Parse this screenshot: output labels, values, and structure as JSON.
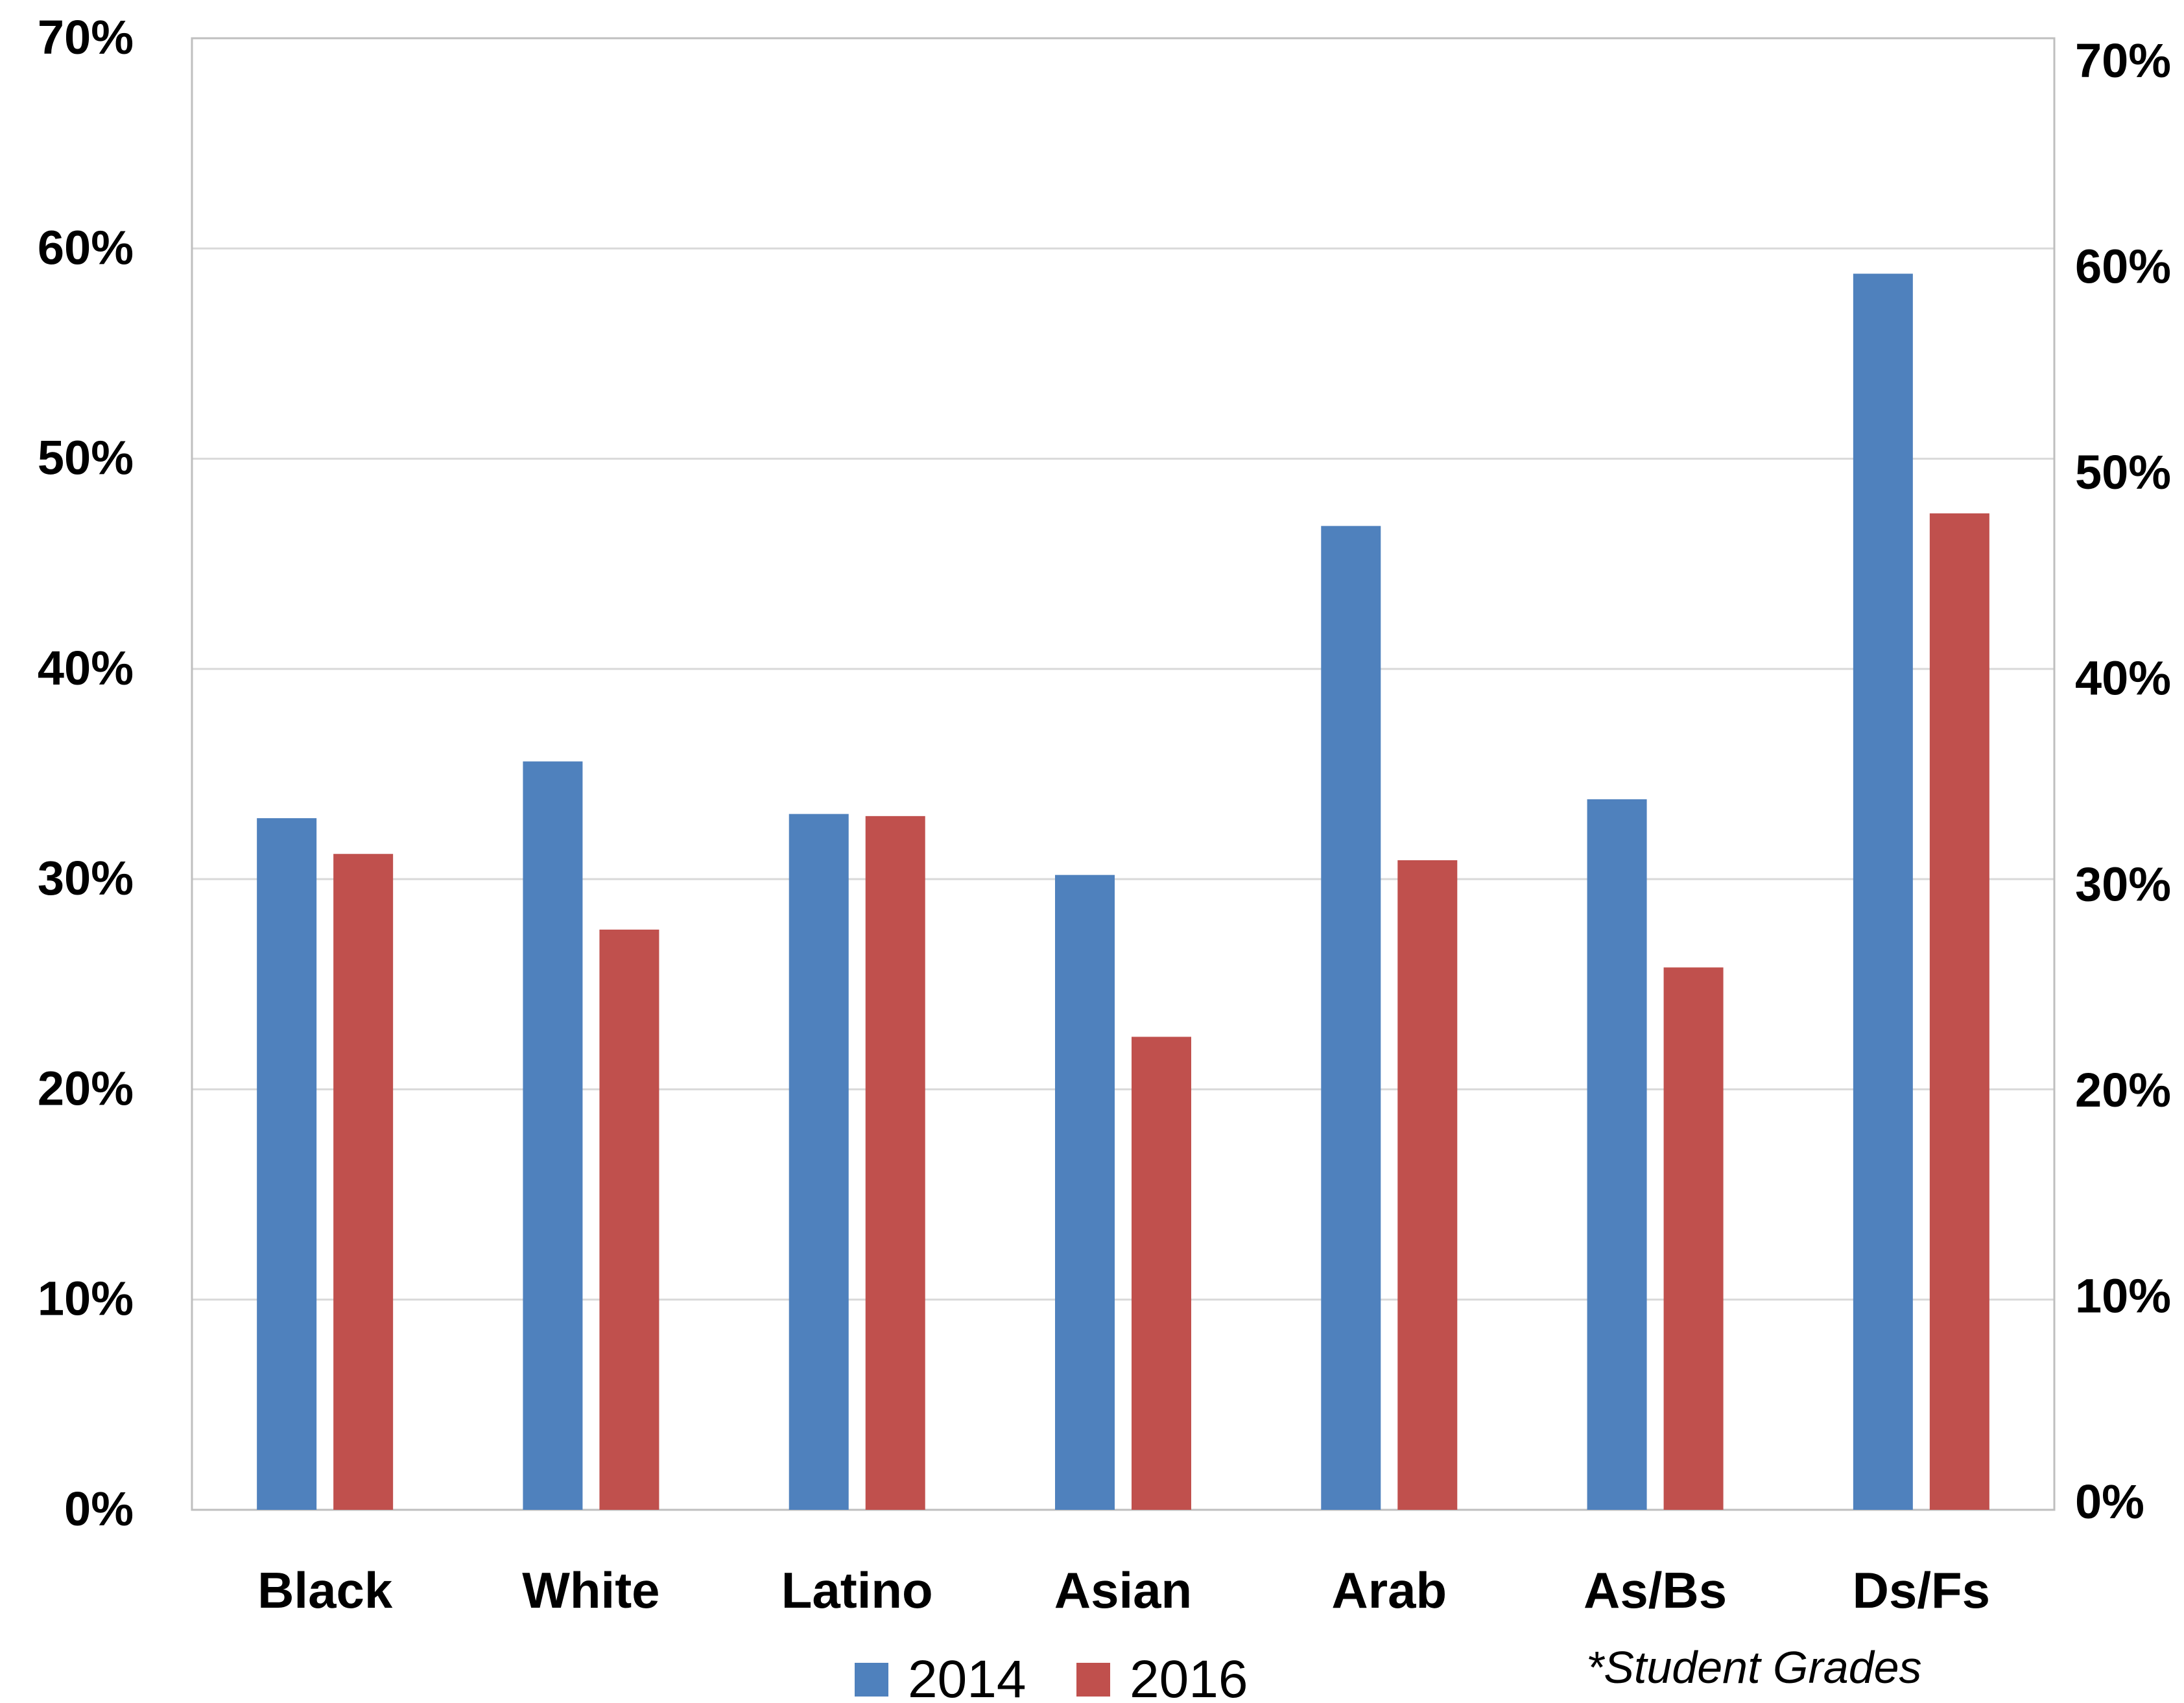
{
  "chart_data": {
    "type": "bar",
    "categories": [
      "Black",
      "White",
      "Latino",
      "Asian",
      "Arab",
      "As/Bs",
      "Ds/Fs"
    ],
    "series": [
      {
        "name": "2014",
        "color": "#4F81BD",
        "values": [
          32.9,
          35.6,
          33.1,
          30.2,
          46.8,
          33.8,
          58.8
        ]
      },
      {
        "name": "2016",
        "color": "#C0504D",
        "values": [
          31.2,
          27.6,
          33.0,
          22.5,
          30.9,
          25.8,
          47.4
        ]
      }
    ],
    "ylim": [
      0,
      70
    ],
    "y_ticks": [
      "0%",
      "10%",
      "20%",
      "30%",
      "40%",
      "50%",
      "60%",
      "70%"
    ],
    "right_y_ticks": [
      "0%",
      "10%",
      "20%",
      "30%",
      "40%",
      "50%",
      "60%",
      "70%"
    ],
    "grid": true,
    "legend_position": "bottom",
    "annotation": "*Student Grades"
  }
}
